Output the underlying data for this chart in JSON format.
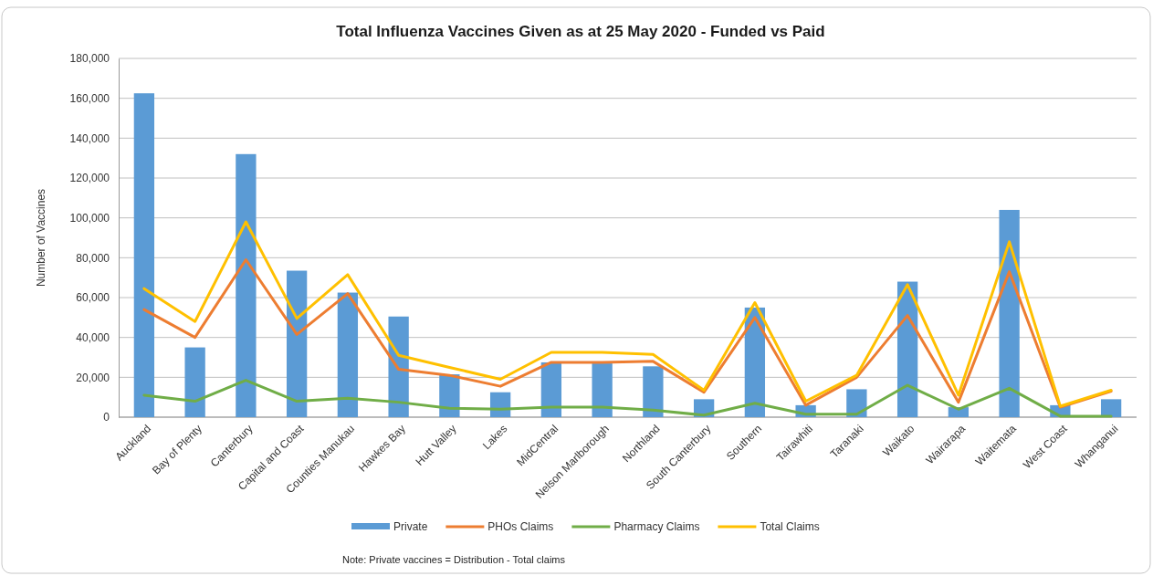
{
  "chart_data": {
    "type": "bar",
    "title": "Total Influenza Vaccines Given as at 25 May 2020 - Funded vs Paid",
    "ylabel": "Number of Vaccines",
    "categories": [
      "Auckland",
      "Bay of Plenty",
      "Canterbury",
      "Capital and Coast",
      "Counties Manukau",
      "Hawkes Bay",
      "Hutt Valley",
      "Lakes",
      "MidCentral",
      "Nelson Marlborough",
      "Northland",
      "South Canterbury",
      "Southern",
      "Tairawhiti",
      "Taranaki",
      "Waikato",
      "Wairarapa",
      "Waitemata",
      "West Coast",
      "Whanganui"
    ],
    "series": [
      {
        "name": "Private",
        "color": "#5b9bd5",
        "values": [
          162500,
          35000,
          132000,
          73500,
          62500,
          50500,
          21500,
          12500,
          27500,
          27000,
          25500,
          9000,
          55000,
          6000,
          14000,
          68000,
          5000,
          104000,
          6000,
          9000
        ]
      },
      {
        "name": "PHOs Claims",
        "type": "line",
        "color": "#ed7d31",
        "values": [
          54000,
          40000,
          79000,
          41500,
          62000,
          24000,
          21000,
          15500,
          27500,
          27500,
          28000,
          12500,
          50000,
          6000,
          20000,
          51000,
          7500,
          73000,
          5000,
          13000
        ]
      },
      {
        "name": "Pharmacy Claims",
        "type": "line",
        "color": "#70ad47",
        "values": [
          11000,
          8000,
          18500,
          8000,
          9500,
          7500,
          4500,
          4000,
          5000,
          5000,
          3500,
          1000,
          7000,
          1500,
          1500,
          16000,
          4000,
          14500,
          500,
          500
        ]
      },
      {
        "name": "Total Claims",
        "type": "line",
        "color": "#ffc000",
        "values": [
          64500,
          48000,
          98000,
          49500,
          71500,
          31000,
          25000,
          19000,
          32500,
          32500,
          31500,
          13500,
          57500,
          8000,
          21000,
          66500,
          11000,
          88000,
          5500,
          13500
        ]
      }
    ],
    "ylim": [
      0,
      180000
    ],
    "yticks": [
      {
        "value": 0,
        "label": "0"
      },
      {
        "value": 20000,
        "label": "20,000"
      },
      {
        "value": 40000,
        "label": "40,000"
      },
      {
        "value": 60000,
        "label": "60,000"
      },
      {
        "value": 80000,
        "label": "80,000"
      },
      {
        "value": 100000,
        "label": "100,000"
      },
      {
        "value": 120000,
        "label": "120,000"
      },
      {
        "value": 140000,
        "label": "140,000"
      },
      {
        "value": 160000,
        "label": "160,000"
      },
      {
        "value": 180000,
        "label": "180,000"
      }
    ],
    "grid": "y",
    "legend": "bottom",
    "marker": "none",
    "line_style": "solid",
    "annotations": [
      "Note: Private vaccines = Distribution - Total claims"
    ]
  }
}
